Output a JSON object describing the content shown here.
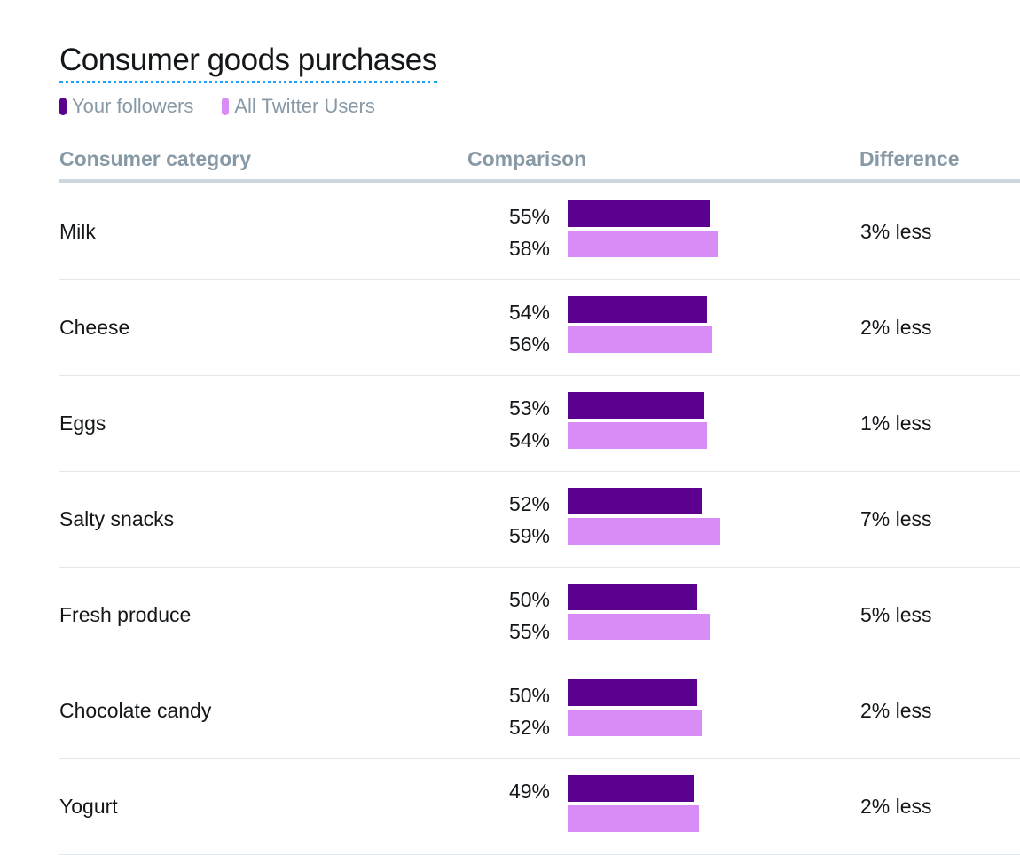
{
  "title": "Consumer goods purchases",
  "legend": [
    {
      "label": "Your followers",
      "color": "#5c0090"
    },
    {
      "label": "All Twitter Users",
      "color": "#d98cf5"
    }
  ],
  "columns": {
    "category": "Consumer category",
    "comparison": "Comparison",
    "difference": "Difference"
  },
  "rows": [
    {
      "category": "Milk",
      "followers": "55%",
      "all_users": "58%",
      "difference": "3% less"
    },
    {
      "category": "Cheese",
      "followers": "54%",
      "all_users": "56%",
      "difference": "2% less"
    },
    {
      "category": "Eggs",
      "followers": "53%",
      "all_users": "54%",
      "difference": "1% less"
    },
    {
      "category": "Salty snacks",
      "followers": "52%",
      "all_users": "59%",
      "difference": "7% less"
    },
    {
      "category": "Fresh produce",
      "followers": "50%",
      "all_users": "55%",
      "difference": "5% less"
    },
    {
      "category": "Chocolate candy",
      "followers": "50%",
      "all_users": "52%",
      "difference": "2% less"
    },
    {
      "category": "Yogurt",
      "followers": "49%",
      "all_users": "",
      "difference": "2% less"
    }
  ],
  "chart_data": {
    "type": "bar",
    "title": "Consumer goods purchases",
    "categories": [
      "Milk",
      "Cheese",
      "Eggs",
      "Salty snacks",
      "Fresh produce",
      "Chocolate candy",
      "Yogurt"
    ],
    "series": [
      {
        "name": "Your followers",
        "values": [
          55,
          54,
          53,
          52,
          50,
          50,
          49
        ],
        "color": "#5c0090"
      },
      {
        "name": "All Twitter Users",
        "values": [
          58,
          56,
          54,
          59,
          55,
          52,
          51
        ],
        "color": "#d98cf5"
      }
    ],
    "difference": [
      "3% less",
      "2% less",
      "1% less",
      "7% less",
      "5% less",
      "2% less",
      "2% less"
    ]
  }
}
